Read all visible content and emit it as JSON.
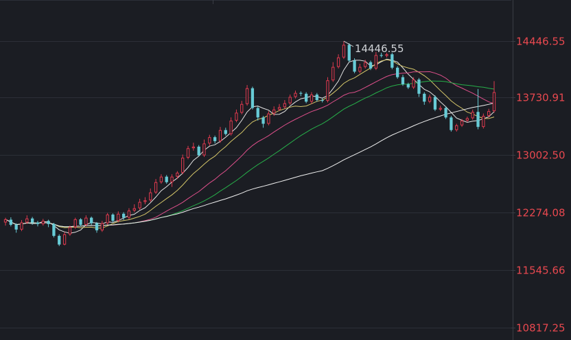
{
  "chart_data": {
    "type": "candlestick",
    "title": "",
    "xlabel": "",
    "ylabel": "",
    "ylim": [
      10817.25,
      14446.55
    ],
    "y_ticks": [
      "14446.55",
      "13730.91",
      "13002.50",
      "12274.08",
      "11545.66",
      "10817.25"
    ],
    "y_tick_values": [
      14446.55,
      13730.91,
      13002.5,
      12274.08,
      11545.66,
      10817.25
    ],
    "high_annotation": {
      "label": "14446.55",
      "value": 14446.55
    },
    "grid": true,
    "colors": {
      "background": "#1b1d23",
      "grid": "#2c2f37",
      "up": "#e03a4f",
      "down": "#67cbd6",
      "axis_text": "#e8484f",
      "annotation_text": "#cfd2d6",
      "ma_white": "#e6e6e6",
      "ma_yellow": "#d7c86a",
      "ma_magenta": "#e0508c",
      "ma_green": "#27b04a",
      "ma_gray": "#f2f2f2"
    },
    "candles": [
      [
        12150,
        12190,
        12110,
        12210
      ],
      [
        12185,
        12120,
        12100,
        12215
      ],
      [
        12120,
        12060,
        12020,
        12140
      ],
      [
        12060,
        12150,
        12040,
        12180
      ],
      [
        12150,
        12200,
        12130,
        12240
      ],
      [
        12200,
        12150,
        12120,
        12220
      ],
      [
        12150,
        12130,
        12100,
        12170
      ],
      [
        12130,
        12170,
        12110,
        12195
      ],
      [
        12170,
        12130,
        12090,
        12185
      ],
      [
        12130,
        11980,
        11960,
        12145
      ],
      [
        11980,
        11870,
        11850,
        12000
      ],
      [
        11870,
        12000,
        11860,
        12030
      ],
      [
        12000,
        12090,
        11980,
        12110
      ],
      [
        12090,
        12190,
        12070,
        12210
      ],
      [
        12190,
        12120,
        12100,
        12205
      ],
      [
        12120,
        12210,
        12100,
        12240
      ],
      [
        12210,
        12140,
        12120,
        12225
      ],
      [
        12140,
        12050,
        12020,
        12155
      ],
      [
        12050,
        12140,
        12030,
        12170
      ],
      [
        12140,
        12250,
        12120,
        12270
      ],
      [
        12250,
        12170,
        12150,
        12265
      ],
      [
        12170,
        12260,
        12150,
        12290
      ],
      [
        12260,
        12210,
        12180,
        12280
      ],
      [
        12210,
        12300,
        12190,
        12330
      ],
      [
        12300,
        12330,
        12280,
        12380
      ],
      [
        12330,
        12410,
        12310,
        12450
      ],
      [
        12410,
        12430,
        12380,
        12470
      ],
      [
        12430,
        12530,
        12410,
        12580
      ],
      [
        12530,
        12660,
        12510,
        12700
      ],
      [
        12660,
        12730,
        12640,
        12760
      ],
      [
        12730,
        12660,
        12640,
        12750
      ],
      [
        12660,
        12730,
        12600,
        12760
      ],
      [
        12730,
        12780,
        12700,
        12800
      ],
      [
        12780,
        12970,
        12760,
        13010
      ],
      [
        12970,
        13090,
        12950,
        13120
      ],
      [
        13090,
        13110,
        13060,
        13160
      ],
      [
        13110,
        13000,
        12990,
        13130
      ],
      [
        13000,
        13150,
        12980,
        13200
      ],
      [
        13150,
        13230,
        13120,
        13260
      ],
      [
        13230,
        13180,
        13150,
        13250
      ],
      [
        13180,
        13320,
        13160,
        13360
      ],
      [
        13320,
        13270,
        13250,
        13350
      ],
      [
        13270,
        13440,
        13250,
        13480
      ],
      [
        13440,
        13540,
        13420,
        13580
      ],
      [
        13540,
        13650,
        13520,
        13690
      ],
      [
        13650,
        13850,
        13630,
        13890
      ],
      [
        13850,
        13600,
        13580,
        13870
      ],
      [
        13600,
        13480,
        13440,
        13620
      ],
      [
        13480,
        13400,
        13350,
        13500
      ],
      [
        13400,
        13530,
        13380,
        13560
      ],
      [
        13530,
        13580,
        13500,
        13620
      ],
      [
        13580,
        13610,
        13560,
        13650
      ],
      [
        13610,
        13660,
        13590,
        13700
      ],
      [
        13660,
        13740,
        13640,
        13770
      ],
      [
        13740,
        13790,
        13720,
        13820
      ],
      [
        13790,
        13780,
        13750,
        13810
      ],
      [
        13780,
        13680,
        13660,
        13800
      ],
      [
        13680,
        13770,
        13650,
        13800
      ],
      [
        13770,
        13700,
        13680,
        13790
      ],
      [
        13700,
        13690,
        13670,
        13720
      ],
      [
        13690,
        13950,
        13670,
        13990
      ],
      [
        13950,
        14120,
        13930,
        14180
      ],
      [
        14120,
        14240,
        14100,
        14280
      ],
      [
        14240,
        14400,
        14220,
        14446.55
      ],
      [
        14400,
        14200,
        14180,
        14420
      ],
      [
        14200,
        14060,
        14040,
        14230
      ],
      [
        14060,
        14120,
        14040,
        14160
      ],
      [
        14120,
        14180,
        14100,
        14210
      ],
      [
        14180,
        14100,
        14080,
        14200
      ],
      [
        14100,
        14270,
        14080,
        14310
      ],
      [
        14270,
        14260,
        14240,
        14300
      ],
      [
        14260,
        14280,
        14240,
        14300
      ],
      [
        14280,
        14110,
        14090,
        14300
      ],
      [
        14110,
        13990,
        13970,
        14130
      ],
      [
        13990,
        13900,
        13880,
        14020
      ],
      [
        13900,
        13860,
        13840,
        13920
      ],
      [
        13860,
        13960,
        13840,
        13990
      ],
      [
        13960,
        13780,
        13740,
        13980
      ],
      [
        13780,
        13680,
        13640,
        13800
      ],
      [
        13680,
        13740,
        13660,
        13770
      ],
      [
        13740,
        13580,
        13560,
        13760
      ],
      [
        13580,
        13600,
        13560,
        13630
      ],
      [
        13600,
        13480,
        13460,
        13620
      ],
      [
        13480,
        13320,
        13300,
        13500
      ],
      [
        13320,
        13380,
        13300,
        13400
      ],
      [
        13380,
        13440,
        13360,
        13460
      ],
      [
        13440,
        13470,
        13420,
        13490
      ],
      [
        13470,
        13550,
        13450,
        13580
      ],
      [
        13550,
        13360,
        13330,
        13840
      ],
      [
        13360,
        13500,
        13340,
        13530
      ],
      [
        13500,
        13560,
        13480,
        13590
      ],
      [
        13560,
        13800,
        13540,
        13940
      ]
    ]
  }
}
